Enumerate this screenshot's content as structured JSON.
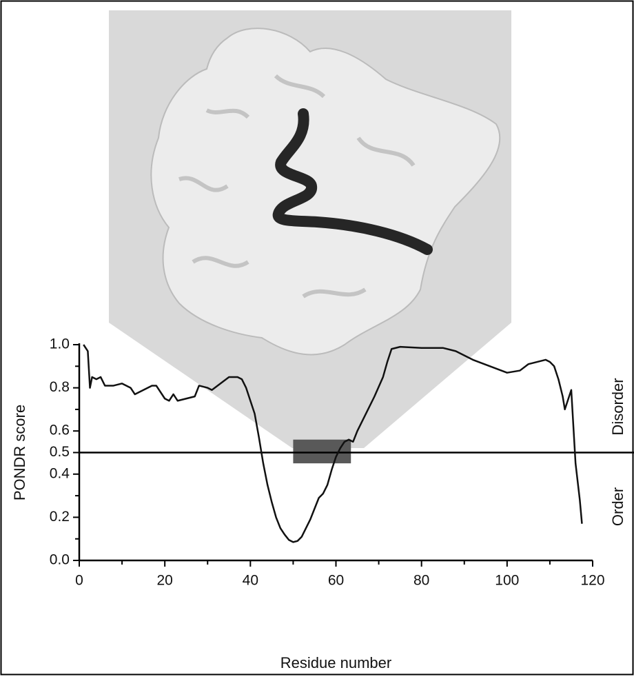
{
  "chart_data": {
    "type": "line",
    "xlabel": "Residue number",
    "ylabel": "PONDR score",
    "annotations": [
      "Disorder",
      "Order"
    ],
    "xlim": [
      0,
      120
    ],
    "ylim": [
      0,
      1
    ],
    "xticks": [
      0,
      20,
      40,
      60,
      80,
      100,
      120
    ],
    "xticks_minor": [
      10,
      30,
      50,
      70,
      90,
      110
    ],
    "yticks": [
      {
        "value": 0,
        "label": "0.0"
      },
      0.2,
      0.4,
      0.5,
      0.6,
      0.8,
      {
        "value": 1,
        "label": "1.0"
      }
    ],
    "yticks_minor": [
      0.1,
      0.3,
      0.7,
      0.9
    ],
    "threshold": 0.5,
    "highlight": {
      "x": [
        50,
        63.5
      ],
      "y": [
        0.45,
        0.56
      ],
      "color": "#595959"
    },
    "color": "#111111",
    "x": [
      1,
      2,
      2.5,
      3,
      4,
      5,
      6,
      8,
      10,
      12,
      13,
      15,
      17,
      18,
      20,
      21,
      22,
      23,
      25,
      27,
      28,
      30,
      31,
      33,
      35,
      37,
      38,
      39,
      41,
      42,
      43,
      44,
      45,
      46,
      47,
      48,
      49,
      50,
      51,
      52,
      53,
      54,
      55,
      56,
      57,
      58,
      59,
      60,
      61,
      62,
      63,
      64,
      65,
      67,
      69,
      71,
      72,
      73,
      75,
      80,
      85,
      88,
      92,
      96,
      100,
      103,
      105,
      107,
      109,
      110,
      111,
      112,
      113,
      113.5,
      114,
      115,
      115.5,
      116,
      117,
      117.5
    ],
    "values": [
      1.0,
      0.97,
      0.8,
      0.85,
      0.84,
      0.85,
      0.81,
      0.81,
      0.82,
      0.8,
      0.77,
      0.79,
      0.81,
      0.81,
      0.75,
      0.74,
      0.77,
      0.74,
      0.75,
      0.76,
      0.81,
      0.8,
      0.79,
      0.82,
      0.85,
      0.85,
      0.84,
      0.8,
      0.68,
      0.57,
      0.45,
      0.35,
      0.27,
      0.2,
      0.15,
      0.12,
      0.095,
      0.085,
      0.09,
      0.11,
      0.15,
      0.19,
      0.24,
      0.29,
      0.31,
      0.35,
      0.42,
      0.48,
      0.52,
      0.55,
      0.56,
      0.55,
      0.6,
      0.68,
      0.76,
      0.85,
      0.92,
      0.98,
      0.99,
      0.985,
      0.985,
      0.97,
      0.93,
      0.9,
      0.87,
      0.88,
      0.91,
      0.92,
      0.93,
      0.92,
      0.9,
      0.84,
      0.76,
      0.7,
      0.73,
      0.79,
      0.62,
      0.45,
      0.28,
      0.17
    ]
  }
}
